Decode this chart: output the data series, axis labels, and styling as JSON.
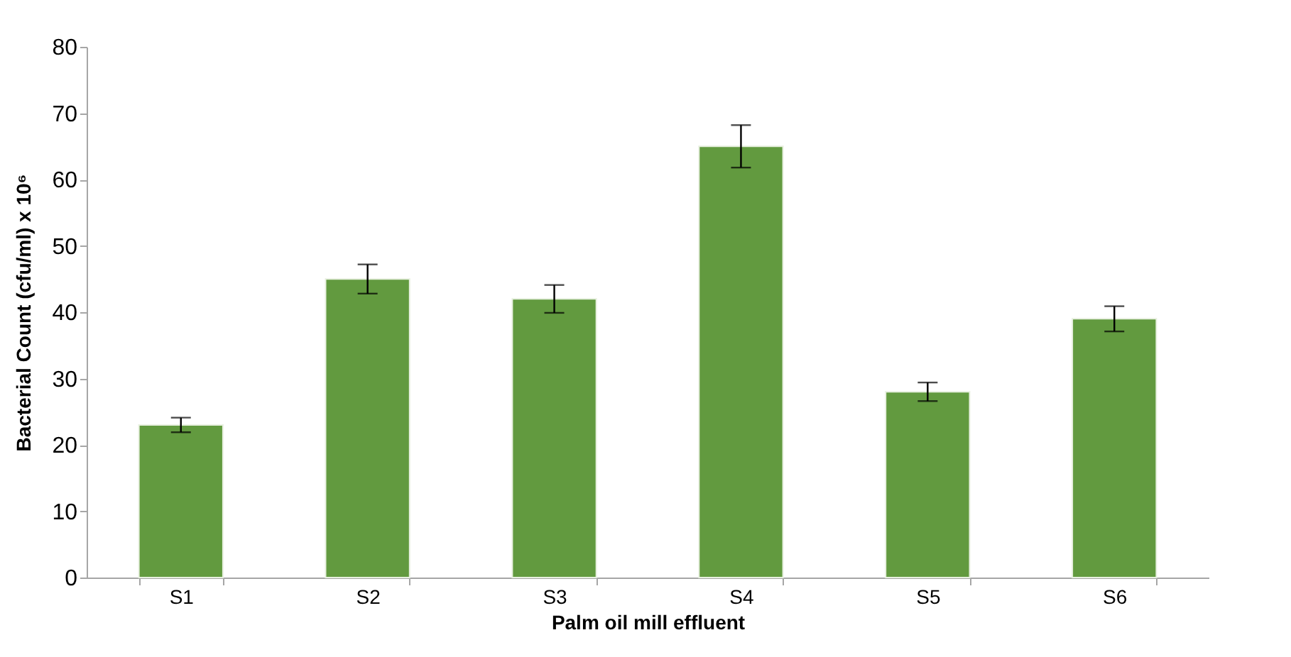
{
  "chart_data": {
    "type": "bar",
    "xlabel": "Palm oil mill effluent",
    "ylabel": "Bacterial Count (cfu/ml) x 10⁶",
    "categories": [
      "S1",
      "S2",
      "S3",
      "S4",
      "S5",
      "S6"
    ],
    "values": [
      23,
      45,
      42,
      65,
      28,
      39
    ],
    "errors": [
      1.1,
      2.2,
      2.1,
      3.2,
      1.4,
      1.9
    ],
    "color": "#629a3f",
    "ylim": [
      0,
      80
    ],
    "yticks": [
      0,
      10,
      20,
      30,
      40,
      50,
      60,
      70,
      80
    ],
    "grid": false
  }
}
